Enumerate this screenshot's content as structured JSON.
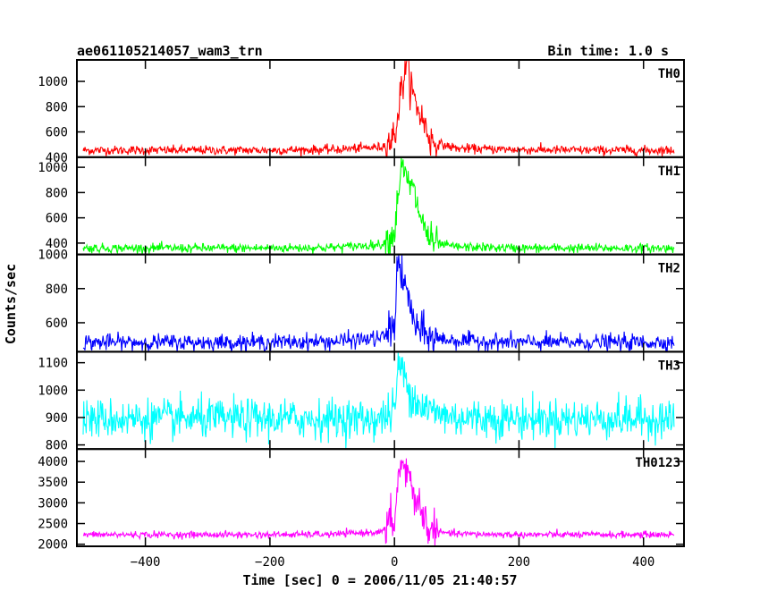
{
  "chart_data": {
    "type": "line",
    "title": "ae061105214057_wam3_trn",
    "bin_time_label": "Bin time: 1.0 s",
    "xlabel": "Time [sec] 0 = 2006/11/05 21:40:57",
    "ylabel": "Counts/sec",
    "xlim": [
      -510,
      465
    ],
    "x_ticks": [
      -400,
      -200,
      0,
      200,
      400
    ],
    "x_range_data": [
      -500,
      449
    ],
    "grid": false,
    "panels": [
      {
        "name": "TH0",
        "color": "#ff0000",
        "ylim": [
          400,
          1170
        ],
        "y_ticks": [
          400,
          600,
          800,
          1000
        ],
        "baseline": 455,
        "noise_sd": 18,
        "noise_pow": 1.0,
        "burst": [
          [
            -5,
            520
          ],
          [
            10,
            730
          ],
          [
            18,
            580
          ],
          [
            30,
            780
          ],
          [
            42,
            600
          ],
          [
            55,
            480
          ]
        ],
        "burst_noise_sd": 75,
        "x": [
          -500,
          -400,
          -300,
          -200,
          -100,
          -20,
          0,
          10,
          20,
          30,
          45,
          60,
          100,
          200,
          300,
          400,
          449
        ],
        "y": [
          455,
          455,
          455,
          455,
          460,
          480,
          560,
          900,
          1170,
          880,
          700,
          520,
          470,
          460,
          455,
          455,
          455
        ]
      },
      {
        "name": "TH1",
        "color": "#00ff00",
        "ylim": [
          310,
          1080
        ],
        "y_ticks": [
          400,
          600,
          800,
          1000
        ],
        "baseline": 360,
        "noise_sd": 18,
        "noise_pow": 1.0,
        "burst": [
          [
            -5,
            430
          ],
          [
            10,
            720
          ],
          [
            18,
            560
          ],
          [
            30,
            620
          ],
          [
            42,
            480
          ],
          [
            55,
            390
          ]
        ],
        "burst_noise_sd": 70,
        "x": [
          -500,
          -400,
          -300,
          -200,
          -100,
          -20,
          0,
          10,
          20,
          30,
          45,
          60,
          100,
          200,
          300,
          400,
          449
        ],
        "y": [
          360,
          360,
          360,
          360,
          365,
          390,
          480,
          1000,
          900,
          820,
          560,
          400,
          370,
          360,
          360,
          360,
          360
        ]
      },
      {
        "name": "TH2",
        "color": "#0000ff",
        "ylim": [
          430,
          1000
        ],
        "y_ticks": [
          600,
          800,
          1000
        ],
        "baseline": 485,
        "noise_sd": 24,
        "noise_pow": 1.0,
        "burst": [
          [
            -5,
            540
          ],
          [
            8,
            690
          ],
          [
            18,
            620
          ],
          [
            30,
            520
          ],
          [
            45,
            500
          ]
        ],
        "burst_noise_sd": 55,
        "x": [
          -500,
          -400,
          -300,
          -200,
          -100,
          -20,
          0,
          5,
          12,
          20,
          35,
          60,
          100,
          200,
          300,
          400,
          449
        ],
        "y": [
          485,
          485,
          485,
          485,
          490,
          510,
          580,
          990,
          850,
          780,
          560,
          510,
          495,
          485,
          485,
          485,
          485
        ]
      },
      {
        "name": "TH3",
        "color": "#00ffff",
        "ylim": [
          785,
          1140
        ],
        "y_ticks": [
          800,
          900,
          1000,
          1100
        ],
        "baseline": 895,
        "noise_sd": 36,
        "noise_pow": 1.0,
        "burst": [
          [
            -8,
            890
          ],
          [
            8,
            1010
          ],
          [
            20,
            960
          ],
          [
            35,
            920
          ],
          [
            55,
            905
          ]
        ],
        "burst_noise_sd": 40,
        "x": [
          -500,
          -400,
          -300,
          -200,
          -100,
          -20,
          0,
          8,
          15,
          25,
          40,
          60,
          100,
          200,
          300,
          400,
          449
        ],
        "y": [
          895,
          895,
          895,
          895,
          895,
          895,
          930,
          1110,
          1050,
          1000,
          950,
          920,
          900,
          895,
          895,
          895,
          895
        ]
      },
      {
        "name": "TH0123",
        "color": "#ff00ff",
        "ylim": [
          1950,
          4300
        ],
        "y_ticks": [
          2000,
          2500,
          3000,
          3500,
          4000
        ],
        "baseline": 2230,
        "noise_sd": 40,
        "noise_pow": 1.0,
        "burst": [
          [
            -5,
            2350
          ],
          [
            10,
            3400
          ],
          [
            18,
            2900
          ],
          [
            30,
            2950
          ],
          [
            42,
            2550
          ],
          [
            55,
            2300
          ]
        ],
        "burst_noise_sd": 260,
        "x": [
          -500,
          -400,
          -300,
          -200,
          -100,
          -20,
          0,
          10,
          20,
          30,
          45,
          60,
          100,
          200,
          300,
          400,
          449
        ],
        "y": [
          2230,
          2230,
          2230,
          2230,
          2240,
          2300,
          2600,
          4020,
          3700,
          3300,
          2700,
          2300,
          2250,
          2230,
          2230,
          2230,
          2230
        ]
      }
    ]
  }
}
